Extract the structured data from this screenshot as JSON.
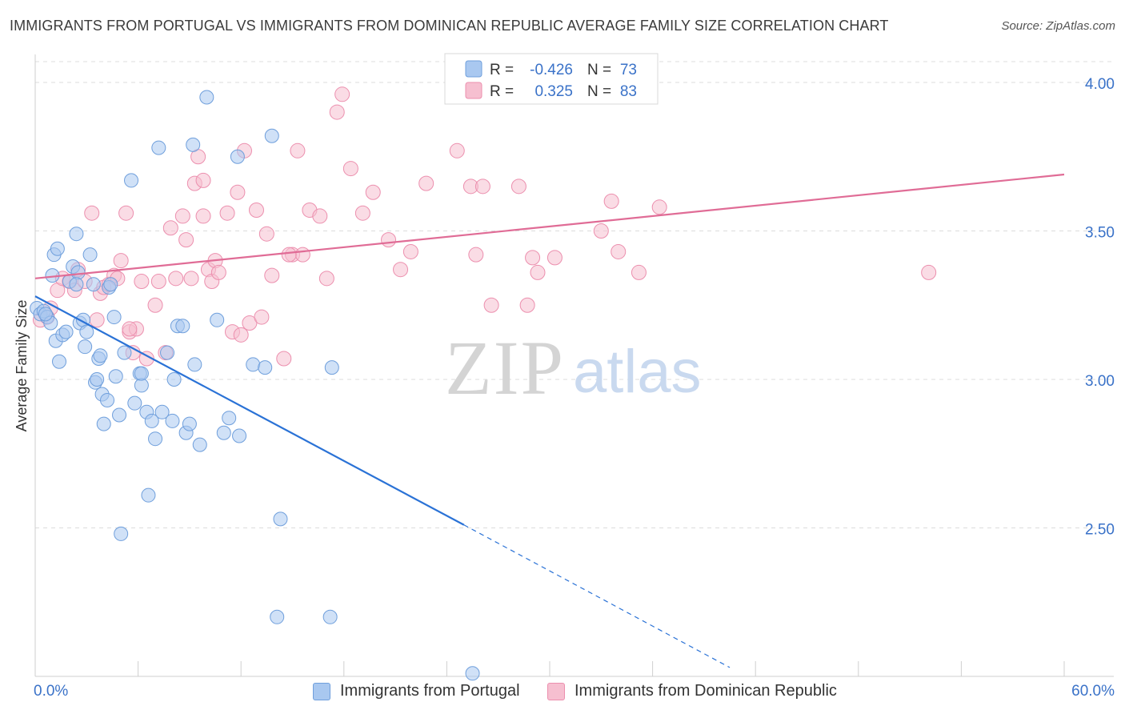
{
  "title": "IMMIGRANTS FROM PORTUGAL VS IMMIGRANTS FROM DOMINICAN REPUBLIC AVERAGE FAMILY SIZE CORRELATION CHART",
  "source": "Source: ZipAtlas.com",
  "watermark": {
    "zip": "ZIP",
    "atlas": "atlas"
  },
  "legend_box": {
    "rows": [
      {
        "r_label": "R =",
        "r_value": "-0.426",
        "n_label": "N =",
        "n_value": "73"
      },
      {
        "r_label": "R =",
        "r_value": "0.325",
        "n_label": "N =",
        "n_value": "83"
      }
    ]
  },
  "colors": {
    "blue_fill": "#a9c8f0",
    "blue_stroke": "#6f9fdc",
    "blue_line": "#2a72d6",
    "pink_fill": "#f6bfd0",
    "pink_stroke": "#ec8fae",
    "pink_line": "#e06c96",
    "value_text": "#3a72c8",
    "grid": "#dcdcdc"
  },
  "chart_data": {
    "type": "scatter",
    "title": "IMMIGRANTS FROM PORTUGAL VS IMMIGRANTS FROM DOMINICAN REPUBLIC AVERAGE FAMILY SIZE CORRELATION CHART",
    "xlabel": "",
    "ylabel": "Average Family Size",
    "xlim": [
      0,
      60
    ],
    "ylim": [
      2.0,
      4.07
    ],
    "x_tick_labels": [
      "0.0%",
      "60.0%"
    ],
    "y_ticks": [
      2.5,
      3.0,
      3.5,
      4.0
    ],
    "y_tick_labels": [
      "2.50",
      "3.00",
      "3.50",
      "4.00"
    ],
    "grid": true,
    "legend_position": "bottom",
    "series": [
      {
        "name": "Immigrants from Portugal",
        "color": "#a9c8f0",
        "r": -0.426,
        "n": 73,
        "trend": {
          "x0": 0,
          "y0": 3.28,
          "x1_solid": 25.0,
          "y1_solid": 2.51,
          "x1_dash": 40.5,
          "y1_dash": 2.03
        },
        "points": [
          [
            0.1,
            3.24
          ],
          [
            0.3,
            3.22
          ],
          [
            0.5,
            3.23
          ],
          [
            0.7,
            3.21
          ],
          [
            0.9,
            3.19
          ],
          [
            1.0,
            3.35
          ],
          [
            1.1,
            3.42
          ],
          [
            1.2,
            3.13
          ],
          [
            1.3,
            3.44
          ],
          [
            1.4,
            3.06
          ],
          [
            1.6,
            3.15
          ],
          [
            1.8,
            3.16
          ],
          [
            2.0,
            3.33
          ],
          [
            2.2,
            3.38
          ],
          [
            2.4,
            3.49
          ],
          [
            2.5,
            3.36
          ],
          [
            2.6,
            3.19
          ],
          [
            2.8,
            3.2
          ],
          [
            2.9,
            3.11
          ],
          [
            3.0,
            3.16
          ],
          [
            3.2,
            3.42
          ],
          [
            3.4,
            3.32
          ],
          [
            3.5,
            2.99
          ],
          [
            3.6,
            3.0
          ],
          [
            3.7,
            3.07
          ],
          [
            3.8,
            3.08
          ],
          [
            3.9,
            2.95
          ],
          [
            4.0,
            2.85
          ],
          [
            4.2,
            2.93
          ],
          [
            4.3,
            3.31
          ],
          [
            4.4,
            3.32
          ],
          [
            4.6,
            3.21
          ],
          [
            4.7,
            3.01
          ],
          [
            4.9,
            2.88
          ],
          [
            5.0,
            2.48
          ],
          [
            5.2,
            3.09
          ],
          [
            5.6,
            3.67
          ],
          [
            5.8,
            2.92
          ],
          [
            6.1,
            3.02
          ],
          [
            6.2,
            2.98
          ],
          [
            6.5,
            2.89
          ],
          [
            6.6,
            2.61
          ],
          [
            6.8,
            2.86
          ],
          [
            7.0,
            2.8
          ],
          [
            7.2,
            3.78
          ],
          [
            7.4,
            2.89
          ],
          [
            7.7,
            3.09
          ],
          [
            8.0,
            2.86
          ],
          [
            8.1,
            3.0
          ],
          [
            8.3,
            3.18
          ],
          [
            8.6,
            3.18
          ],
          [
            8.8,
            2.82
          ],
          [
            9.0,
            2.85
          ],
          [
            9.2,
            3.79
          ],
          [
            9.3,
            3.05
          ],
          [
            9.6,
            2.78
          ],
          [
            10.0,
            3.95
          ],
          [
            10.6,
            3.2
          ],
          [
            11.0,
            2.82
          ],
          [
            11.3,
            2.87
          ],
          [
            11.8,
            3.75
          ],
          [
            11.9,
            2.81
          ],
          [
            12.7,
            3.05
          ],
          [
            13.4,
            3.04
          ],
          [
            13.8,
            3.82
          ],
          [
            14.1,
            2.2
          ],
          [
            14.3,
            2.53
          ],
          [
            17.2,
            2.2
          ],
          [
            17.3,
            3.04
          ],
          [
            25.5,
            2.01
          ],
          [
            6.2,
            3.02
          ],
          [
            2.4,
            3.32
          ],
          [
            0.6,
            3.22
          ]
        ]
      },
      {
        "name": "Immigrants from Dominican Republic",
        "color": "#f6bfd0",
        "r": 0.325,
        "n": 83,
        "trend": {
          "x0": 0,
          "y0": 3.34,
          "x1": 60,
          "y1": 3.69
        },
        "points": [
          [
            0.3,
            3.2
          ],
          [
            0.7,
            3.21
          ],
          [
            0.9,
            3.24
          ],
          [
            1.3,
            3.3
          ],
          [
            1.6,
            3.34
          ],
          [
            2.0,
            3.33
          ],
          [
            2.3,
            3.3
          ],
          [
            2.5,
            3.37
          ],
          [
            2.9,
            3.33
          ],
          [
            3.3,
            3.56
          ],
          [
            3.6,
            3.2
          ],
          [
            3.8,
            3.29
          ],
          [
            4.0,
            3.31
          ],
          [
            4.3,
            3.32
          ],
          [
            4.6,
            3.35
          ],
          [
            4.8,
            3.34
          ],
          [
            5.0,
            3.4
          ],
          [
            5.3,
            3.56
          ],
          [
            5.5,
            3.16
          ],
          [
            5.7,
            3.09
          ],
          [
            5.9,
            3.17
          ],
          [
            6.2,
            3.33
          ],
          [
            6.5,
            3.07
          ],
          [
            7.0,
            3.25
          ],
          [
            7.2,
            3.33
          ],
          [
            7.6,
            3.09
          ],
          [
            7.9,
            3.51
          ],
          [
            8.2,
            3.34
          ],
          [
            8.6,
            3.55
          ],
          [
            8.8,
            3.47
          ],
          [
            9.1,
            3.34
          ],
          [
            9.3,
            3.66
          ],
          [
            9.5,
            3.75
          ],
          [
            9.8,
            3.55
          ],
          [
            10.1,
            3.37
          ],
          [
            10.3,
            3.33
          ],
          [
            10.5,
            3.4
          ],
          [
            10.7,
            3.36
          ],
          [
            11.2,
            3.56
          ],
          [
            11.5,
            3.16
          ],
          [
            11.8,
            3.63
          ],
          [
            12.0,
            3.15
          ],
          [
            12.2,
            3.77
          ],
          [
            12.5,
            3.19
          ],
          [
            12.9,
            3.57
          ],
          [
            13.2,
            3.21
          ],
          [
            13.5,
            3.49
          ],
          [
            13.8,
            3.35
          ],
          [
            14.5,
            3.07
          ],
          [
            15.0,
            3.42
          ],
          [
            15.3,
            3.77
          ],
          [
            15.6,
            3.42
          ],
          [
            16.0,
            3.57
          ],
          [
            16.6,
            3.55
          ],
          [
            17.0,
            3.34
          ],
          [
            17.6,
            3.9
          ],
          [
            17.9,
            3.96
          ],
          [
            18.4,
            3.71
          ],
          [
            19.1,
            3.56
          ],
          [
            19.7,
            3.63
          ],
          [
            20.6,
            3.47
          ],
          [
            21.3,
            3.37
          ],
          [
            21.9,
            3.43
          ],
          [
            22.8,
            3.66
          ],
          [
            24.6,
            3.77
          ],
          [
            25.4,
            3.65
          ],
          [
            25.7,
            3.42
          ],
          [
            26.1,
            3.65
          ],
          [
            26.6,
            3.25
          ],
          [
            28.2,
            3.65
          ],
          [
            28.7,
            3.25
          ],
          [
            29.0,
            3.41
          ],
          [
            29.3,
            3.36
          ],
          [
            30.3,
            3.41
          ],
          [
            33.0,
            3.5
          ],
          [
            33.6,
            3.6
          ],
          [
            34.0,
            3.43
          ],
          [
            35.2,
            3.36
          ],
          [
            36.4,
            3.58
          ],
          [
            52.1,
            3.36
          ],
          [
            9.8,
            3.67
          ],
          [
            14.8,
            3.42
          ],
          [
            5.5,
            3.17
          ]
        ]
      }
    ]
  },
  "bottom_legend": {
    "items": [
      {
        "label": "Immigrants from Portugal"
      },
      {
        "label": "Immigrants from Dominican Republic"
      }
    ]
  }
}
